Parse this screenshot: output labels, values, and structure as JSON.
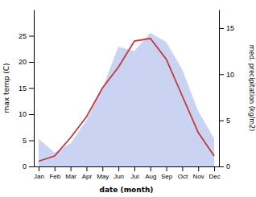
{
  "chart_data": {
    "type": "line",
    "xlabel": "date (month)",
    "ylabel": "max temp (C)",
    "y2label": "med. precipitation (kg/m2)",
    "categories": [
      "Jan",
      "Feb",
      "Mar",
      "Apr",
      "May",
      "Jun",
      "Jul",
      "Aug",
      "Sep",
      "Oct",
      "Nov",
      "Dec"
    ],
    "series": [
      {
        "type": "area",
        "axis": "y2",
        "color": "#b8c4ee",
        "values": [
          3.0,
          1.5,
          2.5,
          5.0,
          8.5,
          13.0,
          12.5,
          14.5,
          13.5,
          10.5,
          6.0,
          3.0
        ]
      },
      {
        "type": "line",
        "color": "#c0393b",
        "values": [
          1.0,
          2.0,
          5.5,
          9.5,
          15.0,
          19.0,
          24.0,
          24.5,
          20.5,
          13.5,
          6.5,
          2.0
        ]
      }
    ],
    "ylim": [
      0,
      30
    ],
    "yticks": [
      0,
      5,
      10,
      15,
      20,
      25
    ],
    "y2lim": [
      0,
      17
    ],
    "y2ticks": [
      0,
      5,
      10,
      15
    ],
    "grid": false
  }
}
